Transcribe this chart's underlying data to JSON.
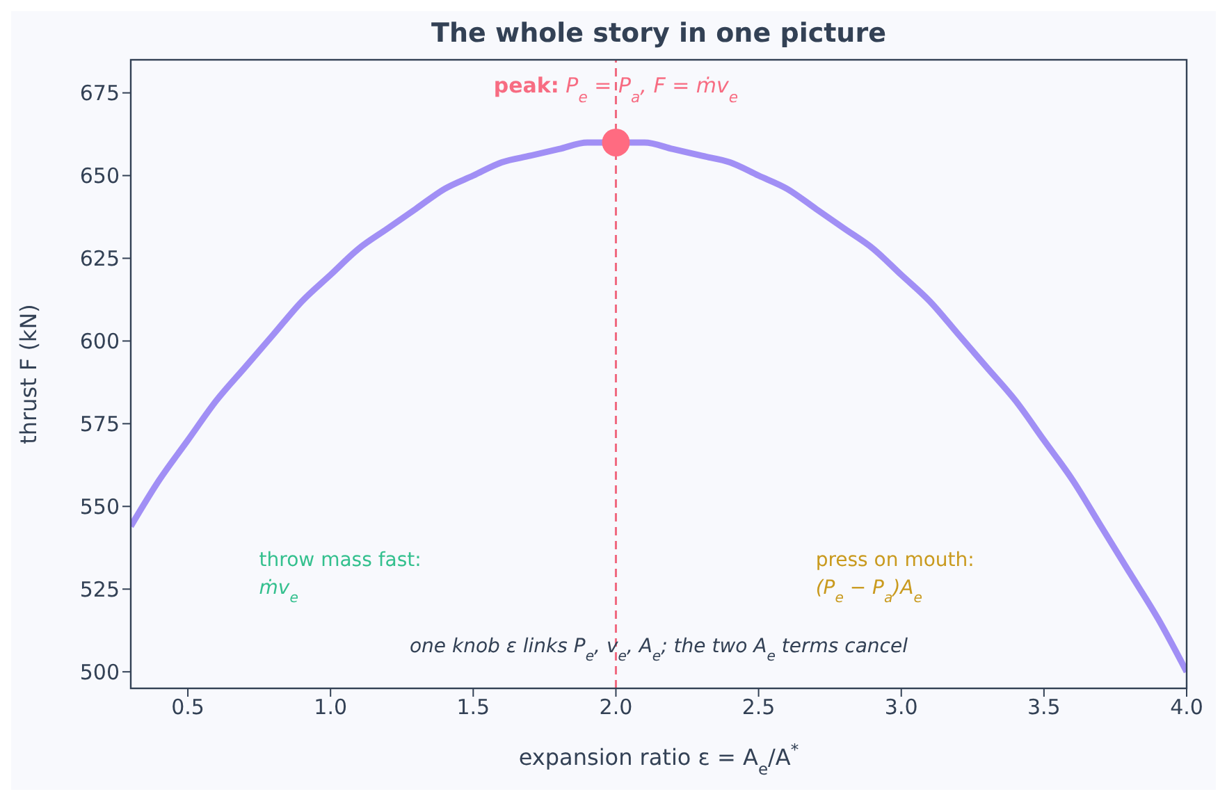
{
  "chart_data": {
    "type": "line",
    "title": "The whole story in one picture",
    "xlabel": "expansion ratio ε = A$_{e}$/A$^{*}$",
    "ylabel": "thrust F (kN)",
    "series": [
      {
        "color": "#a18ff5",
        "x": [
          0.3,
          0.4,
          0.5,
          0.6,
          0.7,
          0.8,
          0.9,
          1.0,
          1.1,
          1.2,
          1.3,
          1.4,
          1.5,
          1.6,
          1.7,
          1.8,
          1.9,
          2.0,
          2.1,
          2.2,
          2.3,
          2.4,
          2.5,
          2.6,
          2.7,
          2.8,
          2.9,
          3.0,
          3.1,
          3.2,
          3.3,
          3.4,
          3.5,
          3.6,
          3.7,
          3.8,
          3.9,
          4.0
        ],
        "values": [
          544,
          558,
          570,
          582,
          592,
          602,
          612,
          620,
          628,
          634,
          640,
          646,
          650,
          654,
          656,
          658,
          660,
          null,
          660,
          658,
          656,
          654,
          650,
          646,
          640,
          634,
          628,
          620,
          612,
          602,
          592,
          582,
          570,
          558,
          544,
          530,
          516,
          500
        ]
      },
      {
        "type": "scatter",
        "color": "#ff6b81",
        "x": [
          2.0
        ],
        "values": [
          660
        ],
        "marker": "circle"
      }
    ],
    "xlim": [
      0.3,
      4.0
    ],
    "xticks": [
      {
        "value": 0.5,
        "label": "0.5"
      },
      {
        "value": 1.0,
        "label": "1.0"
      },
      {
        "value": 1.5,
        "label": "1.5"
      },
      {
        "value": 2.0,
        "label": "2.0"
      },
      {
        "value": 2.5,
        "label": "2.5"
      },
      {
        "value": 3.0,
        "label": "3.0"
      },
      {
        "value": 3.5,
        "label": "3.5"
      },
      {
        "value": 4.0,
        "label": "4.0"
      }
    ],
    "ylim": [
      495,
      685
    ],
    "yticks": [
      500,
      525,
      550,
      575,
      600,
      625,
      650,
      675
    ],
    "ref_lines": [
      {
        "axis": "x",
        "value": 2.0,
        "color": "#f06a80",
        "line_style": "dashed"
      }
    ],
    "annotations": [
      {
        "text": "peak: P$_{e}$ = P$_{a}$, F = ṁv$_{e}$",
        "x": 2.0,
        "y": 660
      },
      "throw mass fast:\nṁv$_{e}$",
      "press on mouth:\n(P$_{e}$ − P$_{a}$)A$_{e}$",
      "one knob ε links P$_{e}$, v$_{e}$, A$_{e}$; the two A$_{e}$ terms cancel"
    ]
  }
}
